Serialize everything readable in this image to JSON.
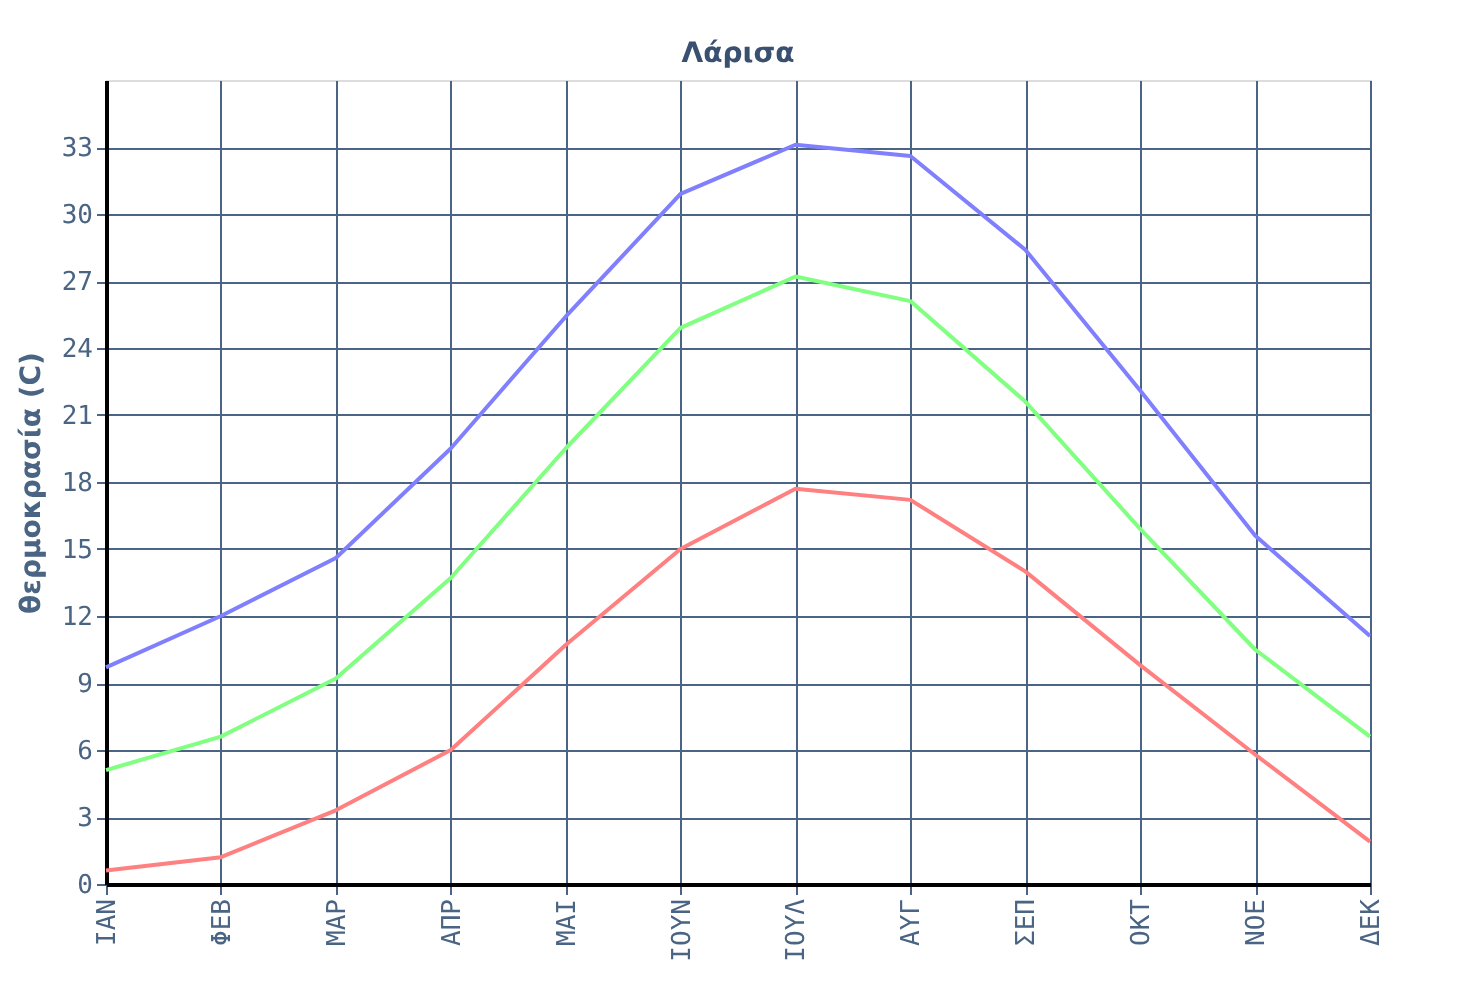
{
  "chart_data": {
    "type": "line",
    "title": "Λάρισα",
    "ylabel": "θερμοκρασία (C)",
    "categories": [
      "ΙΑΝ",
      "ΦΕΒ",
      "ΜΑΡ",
      "ΑΠΡ",
      "ΜΑΙ",
      "ΙΟΥΝ",
      "ΙΟΥΛ",
      "ΑΥΓ",
      "ΣΕΠ",
      "ΟΚΤ",
      "ΝΟΕ",
      "ΔΕΚ"
    ],
    "series": [
      {
        "color": "#8080ff",
        "values": [
          9.7,
          12.0,
          14.6,
          19.5,
          25.4,
          30.9,
          33.1,
          32.6,
          28.4,
          22.1,
          15.6,
          11.1
        ]
      },
      {
        "color": "#80ff80",
        "values": [
          5.1,
          6.6,
          9.2,
          13.7,
          19.5,
          24.9,
          27.2,
          26.1,
          21.6,
          15.9,
          10.5,
          6.6
        ]
      },
      {
        "color": "#ff8080",
        "values": [
          0.6,
          1.2,
          3.3,
          6.0,
          10.7,
          15.0,
          17.7,
          17.2,
          14.0,
          9.8,
          5.8,
          1.9
        ]
      }
    ],
    "ylim": [
      0,
      36
    ],
    "yticks": [
      0,
      3,
      6,
      9,
      12,
      15,
      18,
      21,
      24,
      27,
      30,
      33
    ],
    "grid": true,
    "marker": "none",
    "line_style": "solid"
  }
}
